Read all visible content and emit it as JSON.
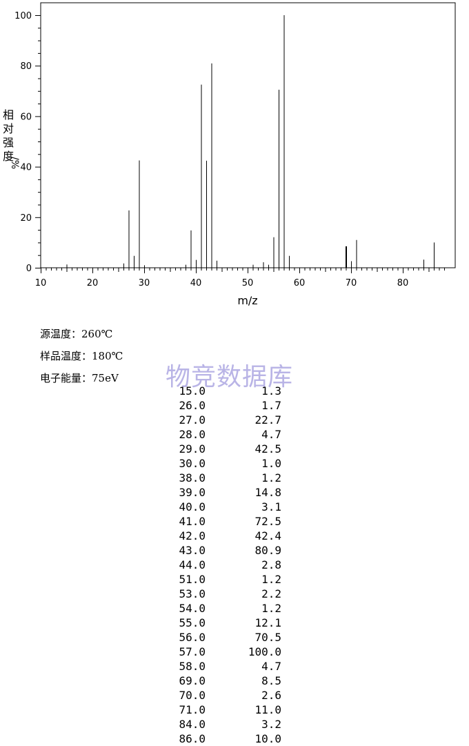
{
  "chart_data": {
    "type": "bar",
    "xlabel": "m/z",
    "ylabel": "相对强度/%",
    "xlim": [
      10,
      90
    ],
    "ylim": [
      0,
      105
    ],
    "x_ticks": [
      10,
      20,
      30,
      40,
      50,
      60,
      70,
      80
    ],
    "y_ticks": [
      0,
      20,
      40,
      60,
      80,
      100
    ],
    "peaks": [
      {
        "mz": 15,
        "intensity": 1.3
      },
      {
        "mz": 26,
        "intensity": 1.7
      },
      {
        "mz": 27,
        "intensity": 22.7
      },
      {
        "mz": 28,
        "intensity": 4.7
      },
      {
        "mz": 29,
        "intensity": 42.5
      },
      {
        "mz": 30,
        "intensity": 1.0
      },
      {
        "mz": 38,
        "intensity": 1.2
      },
      {
        "mz": 39,
        "intensity": 14.8
      },
      {
        "mz": 40,
        "intensity": 3.1
      },
      {
        "mz": 41,
        "intensity": 72.5
      },
      {
        "mz": 42,
        "intensity": 42.4
      },
      {
        "mz": 43,
        "intensity": 80.9
      },
      {
        "mz": 44,
        "intensity": 2.8
      },
      {
        "mz": 51,
        "intensity": 1.2
      },
      {
        "mz": 53,
        "intensity": 2.2
      },
      {
        "mz": 54,
        "intensity": 1.2
      },
      {
        "mz": 55,
        "intensity": 12.1
      },
      {
        "mz": 56,
        "intensity": 70.5
      },
      {
        "mz": 57,
        "intensity": 100.0
      },
      {
        "mz": 58,
        "intensity": 4.7
      },
      {
        "mz": 69,
        "intensity": 8.5
      },
      {
        "mz": 70,
        "intensity": 2.6
      },
      {
        "mz": 71,
        "intensity": 11.0
      },
      {
        "mz": 84,
        "intensity": 3.2
      },
      {
        "mz": 86,
        "intensity": 10.0
      }
    ]
  },
  "conditions": {
    "source_temp": "源温度：260℃",
    "sample_temp": "样品温度：180℃",
    "electron_energy": "电子能量：75eV"
  },
  "watermark": "物竞数据库",
  "table_rows": [
    [
      "15.0",
      "1.3"
    ],
    [
      "26.0",
      "1.7"
    ],
    [
      "27.0",
      "22.7"
    ],
    [
      "28.0",
      "4.7"
    ],
    [
      "29.0",
      "42.5"
    ],
    [
      "30.0",
      "1.0"
    ],
    [
      "38.0",
      "1.2"
    ],
    [
      "39.0",
      "14.8"
    ],
    [
      "40.0",
      "3.1"
    ],
    [
      "41.0",
      "72.5"
    ],
    [
      "42.0",
      "42.4"
    ],
    [
      "43.0",
      "80.9"
    ],
    [
      "44.0",
      "2.8"
    ],
    [
      "51.0",
      "1.2"
    ],
    [
      "53.0",
      "2.2"
    ],
    [
      "54.0",
      "1.2"
    ],
    [
      "55.0",
      "12.1"
    ],
    [
      "56.0",
      "70.5"
    ],
    [
      "57.0",
      "100.0"
    ],
    [
      "58.0",
      "4.7"
    ],
    [
      "69.0",
      "8.5"
    ],
    [
      "70.0",
      "2.6"
    ],
    [
      "71.0",
      "11.0"
    ],
    [
      "84.0",
      "3.2"
    ],
    [
      "86.0",
      "10.0"
    ]
  ]
}
